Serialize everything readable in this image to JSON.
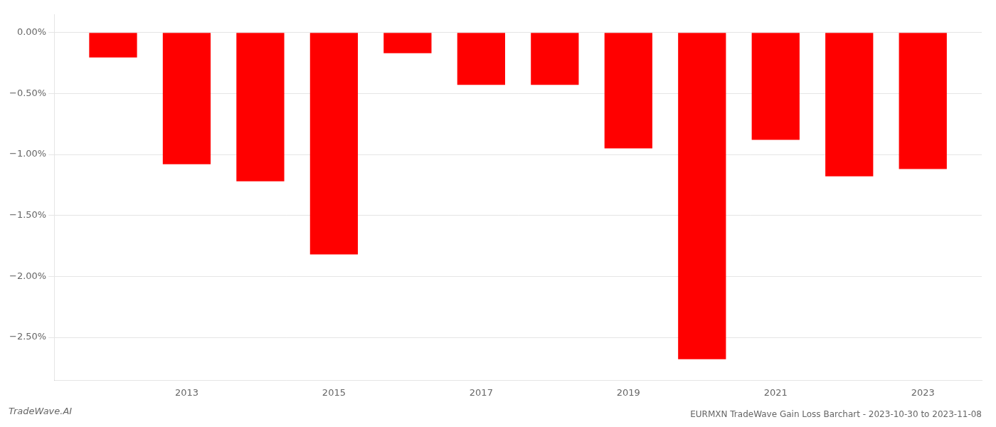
{
  "chart_data": {
    "type": "bar",
    "title": "EURMXN TradeWave Gain Loss Barchart - 2023-10-30 to 2023-11-08",
    "annotations": [
      "TradeWave.AI"
    ],
    "x": [
      2012,
      2013,
      2014,
      2015,
      2016,
      2017,
      2018,
      2019,
      2020,
      2021,
      2022,
      2023
    ],
    "values": [
      -0.205,
      -1.08,
      -1.22,
      -1.82,
      -0.17,
      -0.43,
      -0.43,
      -0.95,
      -2.68,
      -0.88,
      -1.18,
      -1.12
    ],
    "color": "#ff0000",
    "xlim": [
      2011.2,
      2023.8
    ],
    "xticks": [
      2013,
      2015,
      2017,
      2019,
      2021,
      2023
    ],
    "ylim": [
      -2.85,
      0.15
    ],
    "yticks": [
      {
        "value": 0.0,
        "label": "0.00%"
      },
      {
        "value": -0.5,
        "label": "−0.50%"
      },
      {
        "value": -1.0,
        "label": "−1.00%"
      },
      {
        "value": -1.5,
        "label": "−1.50%"
      },
      {
        "value": -2.0,
        "label": "−2.00%"
      },
      {
        "value": -2.5,
        "label": "−2.50%"
      }
    ],
    "grid": true
  }
}
